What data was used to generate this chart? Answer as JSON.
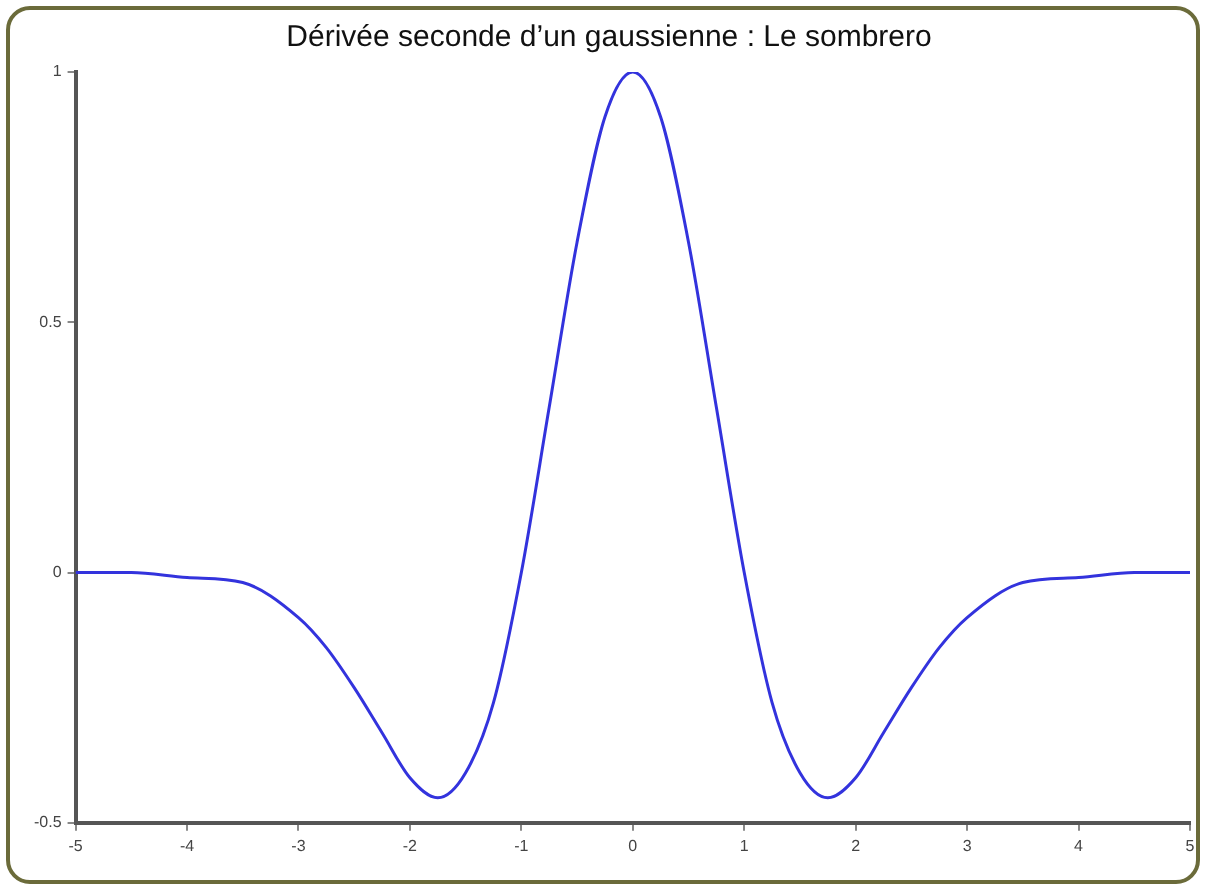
{
  "chart_data": {
    "type": "line",
    "title": "Dérivée seconde d’un gaussienne : Le sombrero",
    "x": [
      -5,
      -4.5,
      -4,
      -3.5,
      -3,
      -2.75,
      -2.5,
      -2.25,
      -2,
      -1.75,
      -1.5,
      -1.25,
      -1,
      -0.75,
      -0.5,
      -0.25,
      0,
      0.25,
      0.5,
      0.75,
      1,
      1.25,
      1.5,
      1.75,
      2,
      2.25,
      2.5,
      2.75,
      3,
      3.5,
      4,
      4.5,
      5
    ],
    "series": [
      {
        "color": "#3333dd",
        "values": [
          0,
          0,
          -0.01,
          -0.02,
          -0.09,
          -0.15,
          -0.23,
          -0.32,
          -0.41,
          -0.45,
          -0.4,
          -0.26,
          0,
          0.33,
          0.66,
          0.91,
          1,
          0.91,
          0.66,
          0.33,
          0,
          -0.26,
          -0.4,
          -0.45,
          -0.41,
          -0.32,
          -0.23,
          -0.15,
          -0.09,
          -0.02,
          -0.01,
          0,
          0
        ]
      }
    ],
    "xlim": [
      -5,
      5
    ],
    "xticks": [
      -5,
      -4,
      -3,
      -2,
      -1,
      0,
      1,
      2,
      3,
      4,
      5
    ],
    "ylim": [
      -0.5,
      1
    ],
    "yticks": [
      -0.5,
      0,
      0.5,
      1
    ],
    "grid": false,
    "legend": false,
    "marker": "none",
    "line_style": "solid"
  }
}
